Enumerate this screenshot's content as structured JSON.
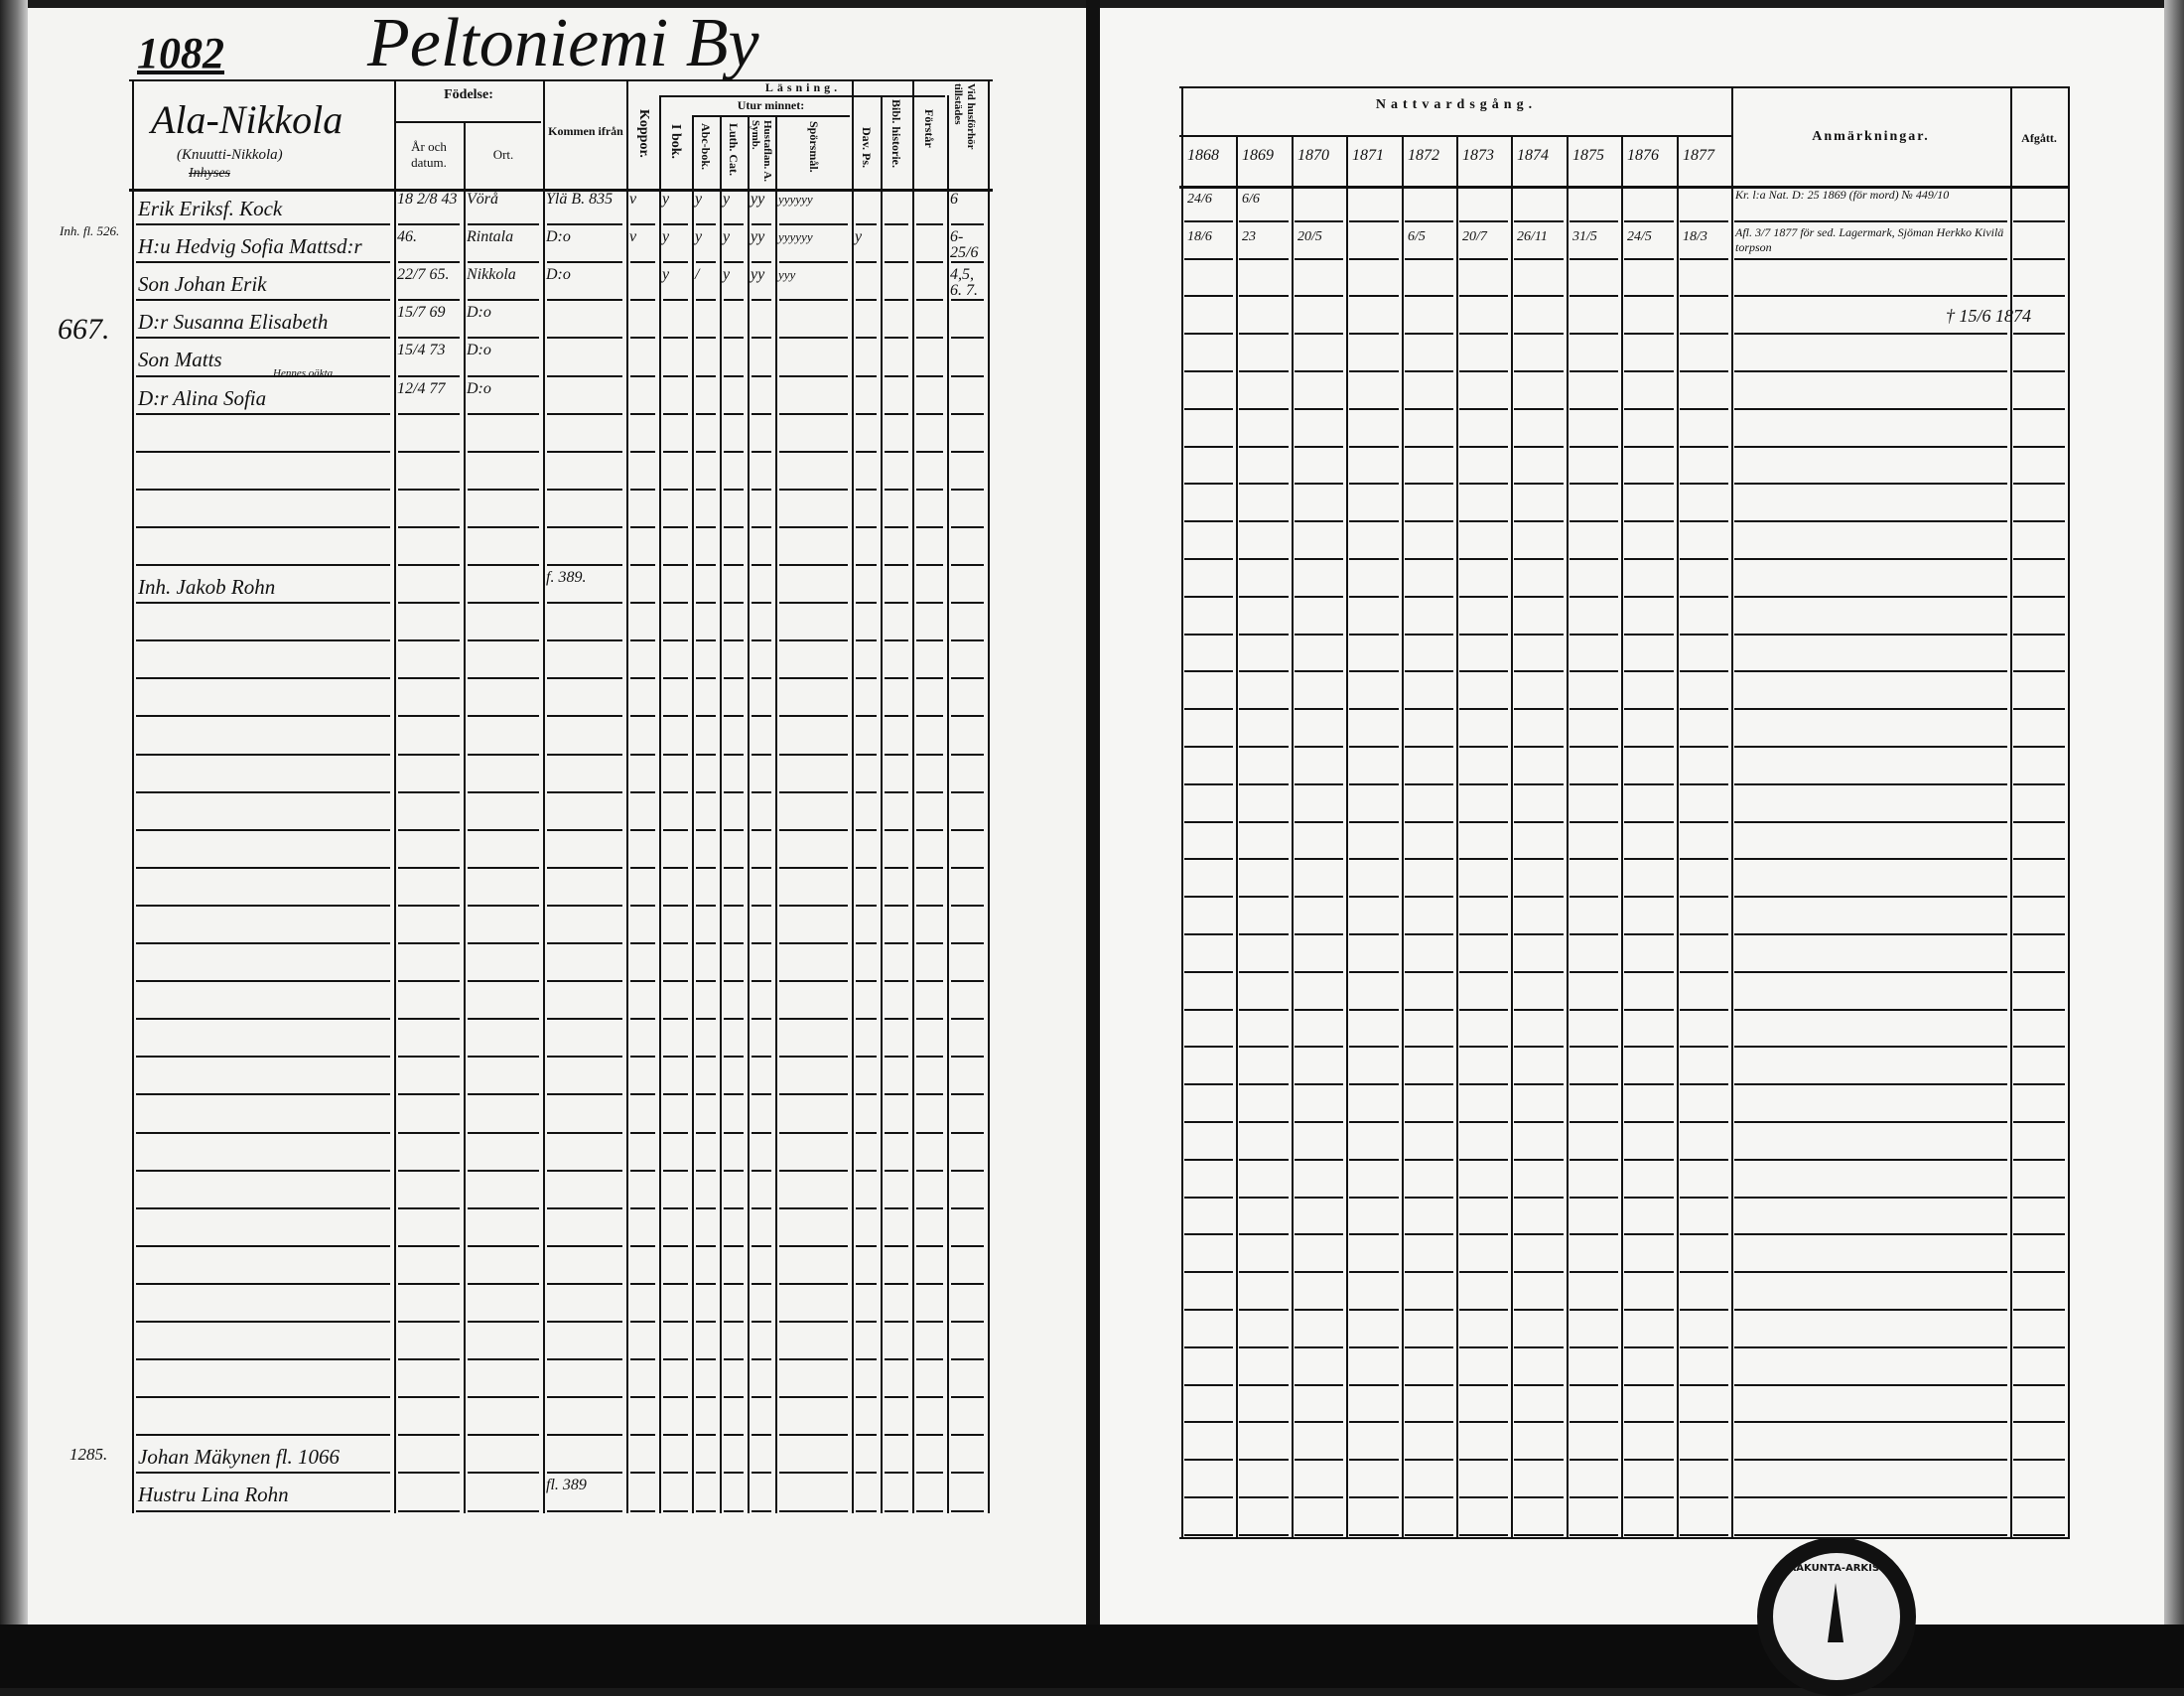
{
  "page_number": "1082",
  "village_title": "Peltoniemi By",
  "left": {
    "farm_name": "Ala-Nikkola",
    "farm_alt_name": "(Knuutti-Nikkola)",
    "farm_note_struck": "Inhyses",
    "margin_notes": [
      "Inh. fl. 526.",
      "667."
    ],
    "headers": {
      "birth": "Födelse:",
      "year_date": "År och datum.",
      "place": "Ort.",
      "came_from": "Kommen ifrån",
      "smallpox": "Koppor.",
      "reading": "Läsning.",
      "by_heart": "Utur minnet:",
      "in_book": "I bok.",
      "abc": "Abc-bok.",
      "luth_cat": "Luth. Cat.",
      "hustafl": "Hustaflan. A. Symb.",
      "questions": "Spörsmål.",
      "dav_ps": "Dav. Ps.",
      "bibl": "Bibl. historie.",
      "understands": "Förstår",
      "hearing": "Vid husförhör tillstädes"
    },
    "rows": [
      {
        "name": "Erik Eriksf. Kock",
        "year": "18 2/8 43",
        "place": "Vörå",
        "from": "Ylä B. 835",
        "smallpox": "v",
        "in_book": "y",
        "abc": "y",
        "luth": "y",
        "hustafl": "yy",
        "questions": "yyyyyy",
        "dav": "",
        "bibl": "",
        "understands": "",
        "hearing": "6"
      },
      {
        "name": "H:u Hedvig Sofia Mattsd:r",
        "year": "46.",
        "place": "Rintala",
        "from": "D:o",
        "smallpox": "v",
        "in_book": "y",
        "abc": "y",
        "luth": "y",
        "hustafl": "yy",
        "questions": "yyyyyy",
        "dav": "y",
        "bibl": "",
        "understands": "",
        "hearing": "6-25/6"
      },
      {
        "name": "Son Johan Erik",
        "year": "22/7 65.",
        "place": "Nikkola",
        "from": "D:o",
        "smallpox": "",
        "in_book": "y",
        "abc": "/",
        "luth": "y",
        "hustafl": "yy",
        "questions": "yyy",
        "dav": "",
        "bibl": "",
        "understands": "",
        "hearing": "4,5, 6. 7."
      },
      {
        "name": "D:r Susanna Elisabeth",
        "year": "15/7 69",
        "place": "D:o",
        "from": "",
        "smallpox": "",
        "in_book": "",
        "abc": "",
        "luth": "",
        "hustafl": "",
        "questions": "",
        "dav": "",
        "bibl": "",
        "understands": "",
        "hearing": ""
      },
      {
        "name": "Son Matts",
        "year": "15/4 73",
        "place": "D:o",
        "from": "",
        "smallpox": "",
        "in_book": "",
        "abc": "",
        "luth": "",
        "hustafl": "",
        "questions": "",
        "dav": "",
        "bibl": "",
        "understands": "",
        "hearing": ""
      },
      {
        "name": "D:r Alina Sofia",
        "year": "12/4 77",
        "place": "D:o",
        "from": "",
        "smallpox": "",
        "in_book": "",
        "abc": "",
        "luth": "",
        "hustafl": "",
        "questions": "",
        "dav": "",
        "bibl": "",
        "understands": "",
        "hearing": ""
      },
      {
        "name": "Inh. Jakob Rohn",
        "year": "",
        "place": "",
        "from": "f. 389.",
        "smallpox": "",
        "in_book": "",
        "abc": "",
        "luth": "",
        "hustafl": "",
        "questions": "",
        "dav": "",
        "bibl": "",
        "understands": "",
        "hearing": ""
      },
      {
        "name": "Johan Mäkynen fl. 1066",
        "year": "",
        "place": "",
        "from": "",
        "smallpox": "",
        "in_book": "",
        "abc": "",
        "luth": "",
        "hustafl": "",
        "questions": "",
        "dav": "",
        "bibl": "",
        "understands": "",
        "hearing": ""
      },
      {
        "name": "Hustru Lina Rohn",
        "year": "",
        "place": "",
        "from": "fl. 389",
        "smallpox": "",
        "in_book": "",
        "abc": "",
        "luth": "",
        "hustafl": "",
        "questions": "",
        "dav": "",
        "bibl": "",
        "understands": "",
        "hearing": ""
      }
    ],
    "alina_note": "Hennes oäkta",
    "bottom_margin_number": "1285."
  },
  "right": {
    "communion_header": "Nattvardsgång.",
    "years": [
      "1868",
      "1869",
      "1870",
      "1871",
      "1872",
      "1873",
      "1874",
      "1875",
      "1876",
      "1877"
    ],
    "remarks_header": "Anmärkningar.",
    "departed_header": "Afgått.",
    "rows": [
      {
        "communion": [
          "24/6",
          "6/6",
          "",
          "",
          "",
          "",
          "",
          "",
          "",
          ""
        ],
        "remarks": "Kr. l:a Nat. D: 25 1869 (för mord) № 449/10",
        "departed": ""
      },
      {
        "communion": [
          "18/6",
          "23",
          "20/5",
          "",
          "6/5",
          "20/7",
          "26/11",
          "31/5",
          "24/5",
          "18/3"
        ],
        "remarks": "Afl. 3/7 1877 för sed. Lagermark, Sjöman Herkko Kivilä torpson",
        "departed": ""
      },
      {
        "communion": [
          "",
          "",
          "",
          "",
          "",
          "",
          "",
          "",
          "",
          ""
        ],
        "remarks": "",
        "departed": ""
      },
      {
        "communion": [
          "",
          "",
          "",
          "",
          "",
          "",
          "",
          "",
          "",
          ""
        ],
        "remarks": "",
        "departed": "† 15/6 1874"
      }
    ]
  },
  "stamp_text": "MAAKUNTA-ARKISTO"
}
